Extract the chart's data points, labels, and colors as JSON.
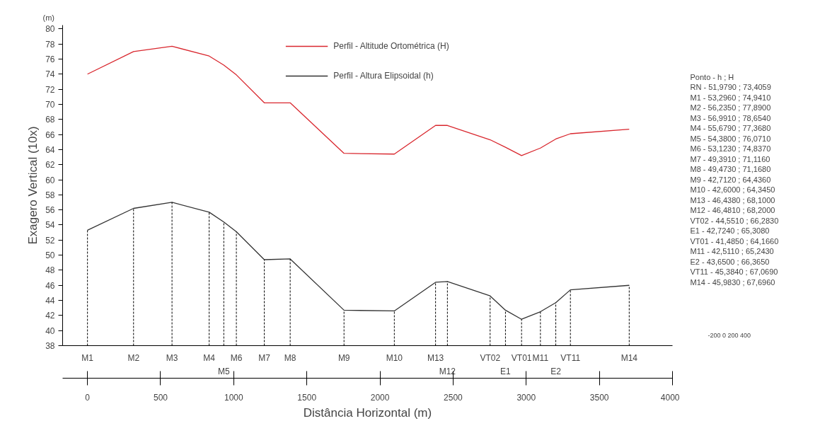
{
  "chart_data": {
    "type": "line",
    "ylabel": "Exagero Vertical (10x)",
    "xlim": [
      -170,
      4000
    ],
    "ylim": [
      38,
      80.5
    ],
    "ref_lines": [
      {
        "axis": "x",
        "value": 0,
        "label": "M1",
        "line_style": "dashed"
      },
      {
        "axis": "x",
        "value": 315,
        "label": "M2",
        "line_style": "dashed"
      },
      {
        "axis": "x",
        "value": 578,
        "label": "M3",
        "line_style": "dashed"
      },
      {
        "axis": "x",
        "value": 832,
        "label": "M4",
        "line_style": "dashed"
      },
      {
        "axis": "x",
        "value": 932,
        "label": "M5",
        "line_style": "dashed"
      },
      {
        "axis": "x",
        "value": 1018,
        "label": "M6",
        "line_style": "dashed"
      },
      {
        "axis": "x",
        "value": 1209,
        "label": "M7",
        "line_style": "dashed"
      },
      {
        "axis": "x",
        "value": 1386,
        "label": "M8",
        "line_style": "dashed"
      },
      {
        "axis": "x",
        "value": 1754,
        "label": "M9",
        "line_style": "dashed"
      },
      {
        "axis": "x",
        "value": 2098,
        "label": "M10",
        "line_style": "dashed"
      },
      {
        "axis": "x",
        "value": 2380,
        "label": "M13",
        "line_style": "dashed"
      },
      {
        "axis": "x",
        "value": 2461,
        "label": "M12",
        "line_style": "dashed"
      },
      {
        "axis": "x",
        "value": 2753,
        "label": "VT02",
        "line_style": "dashed"
      },
      {
        "axis": "x",
        "value": 2858,
        "label": "E1",
        "line_style": "dashed"
      },
      {
        "axis": "x",
        "value": 2968,
        "label": "VT01",
        "line_style": "dashed"
      },
      {
        "axis": "x",
        "value": 3097,
        "label": "M11",
        "line_style": "dashed"
      },
      {
        "axis": "x",
        "value": 3202,
        "label": "E2",
        "line_style": "dashed"
      },
      {
        "axis": "x",
        "value": 3302,
        "label": "VT11",
        "line_style": "dashed"
      },
      {
        "axis": "x",
        "value": 3704,
        "label": "M14",
        "line_style": "dashed"
      }
    ],
    "xlabel": "Distância Horizontal (m)",
    "xticks": [
      0,
      500,
      1000,
      1500,
      2000,
      2500,
      3000,
      3500,
      4000
    ],
    "yticks": [
      38,
      40,
      42,
      44,
      46,
      48,
      50,
      52,
      54,
      56,
      58,
      60,
      62,
      64,
      66,
      68,
      70,
      72,
      74,
      76,
      78,
      80
    ],
    "x": [
      0,
      315,
      578,
      832,
      932,
      1018,
      1209,
      1386,
      1754,
      2098,
      2380,
      2461,
      2753,
      2858,
      2968,
      3097,
      3202,
      3302,
      3704
    ],
    "series": [
      {
        "name": "Perfil - Altitude Ortométrica (H)",
        "color": "#d9272e",
        "values": [
          74.0,
          77.0,
          77.7,
          76.4,
          75.2,
          73.9,
          70.2,
          70.2,
          63.5,
          63.4,
          67.2,
          67.2,
          65.3,
          64.3,
          63.2,
          64.2,
          65.4,
          66.1,
          66.7
        ]
      },
      {
        "name": "Perfil - Altura Elipsoidal (h)",
        "color": "#333333",
        "values": [
          53.3,
          56.2,
          57.0,
          55.7,
          54.4,
          53.1,
          49.4,
          49.5,
          42.7,
          42.6,
          46.4,
          46.5,
          44.6,
          42.7,
          41.5,
          42.5,
          43.7,
          45.4,
          46.0
        ]
      }
    ],
    "legend": "top",
    "grid": false,
    "annotations": [
      "(m)",
      "Ponto  -  h ; H",
      "RN  -  51,9790 ; 73,4059",
      "M1  -  53,2960 ; 74,9410",
      "M2  -  56,2350 ; 77,8900",
      "M3  -  56,9910 ; 78,6540",
      "M4  -  55,6790 ; 77,3680",
      "M5  -  54,3800 ; 76,0710",
      "M6  -  53,1230 ; 74,8370",
      "M7  -  49,3910 ; 71,1160",
      "M8  -  49,4730 ; 71,1680",
      "M9  -  42,7120 ; 64,4360",
      "M10  -  42,6000 ; 64,3450",
      "M13  -  46,4380 ; 68,1000",
      "M12  -  46,4810 ; 68,2000",
      "VT02  -  44,5510 ; 66,2830",
      "E1  -  42,7240 ; 65,3080",
      "VT01  -  41,4850 ; 64,1660",
      "M11  -  42,5110 ; 65,2430",
      "E2  -  43,6500 ; 66,3650",
      "VT11  -  45,3840 ; 67,0690",
      "M14  -  45,9830 ; 67,6960",
      "-200     0     200     400"
    ]
  }
}
